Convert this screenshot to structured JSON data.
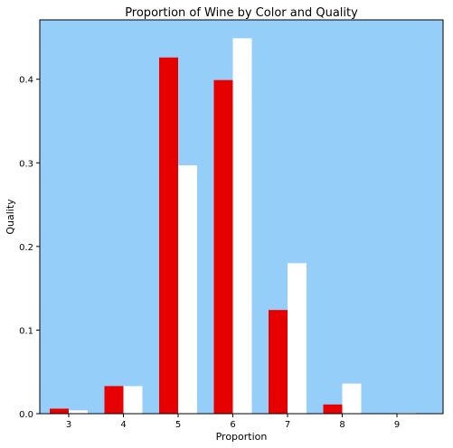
{
  "chart_data": {
    "type": "bar",
    "title": "Proportion of Wine by Color and Quality",
    "xlabel": "Proportion",
    "ylabel": "Quality",
    "categories": [
      "3",
      "4",
      "5",
      "6",
      "7",
      "8",
      "9"
    ],
    "series": [
      {
        "values": [
          0.006,
          0.033,
          0.426,
          0.399,
          0.124,
          0.011,
          0.0
        ],
        "color": "#e60000"
      },
      {
        "values": [
          0.004,
          0.033,
          0.297,
          0.449,
          0.18,
          0.036,
          0.001
        ],
        "color": "#ffffff"
      }
    ],
    "yticks": [
      "0.0",
      "0.1",
      "0.2",
      "0.3",
      "0.4"
    ],
    "ylim": [
      0,
      0.471
    ],
    "background_color": "#96cefa",
    "grid": false,
    "legend": false
  }
}
